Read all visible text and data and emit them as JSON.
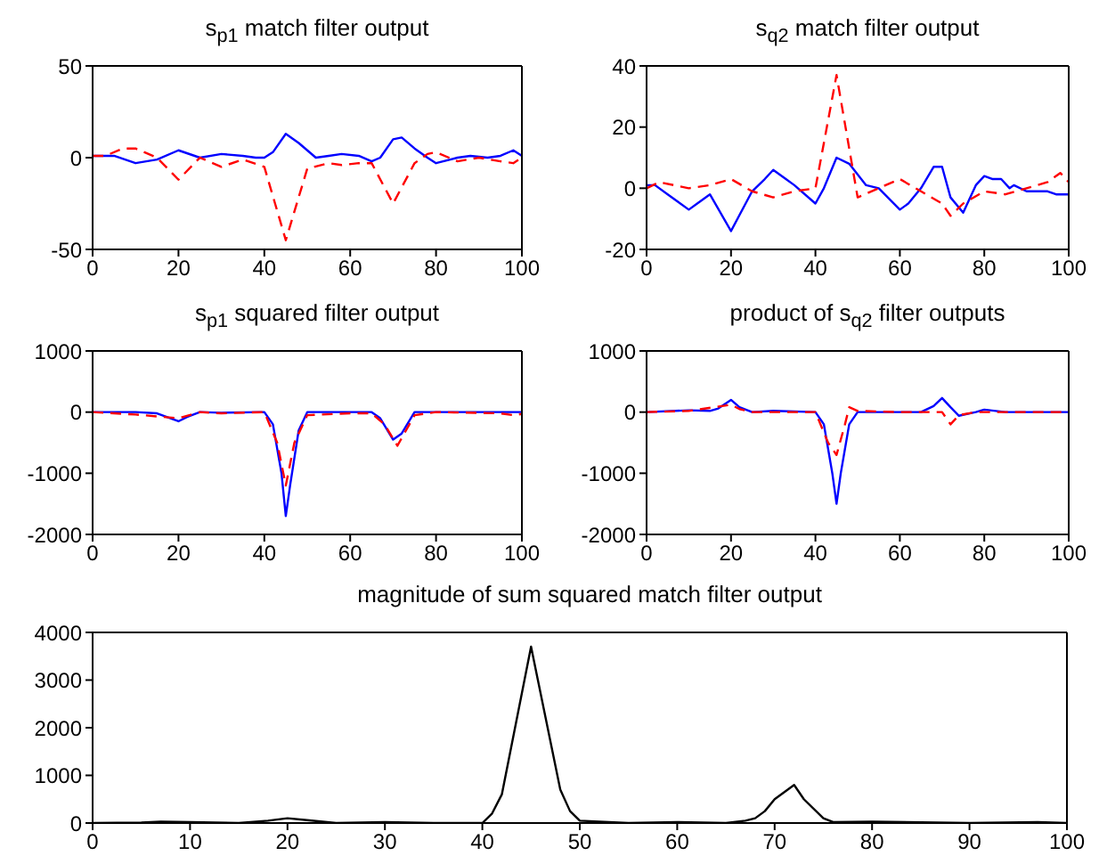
{
  "chart_data": [
    {
      "type": "line",
      "title": "s$_{p1}$ match filter output",
      "xlim": [
        0,
        100
      ],
      "xticks": [
        0,
        20,
        40,
        60,
        80,
        100
      ],
      "ylim": [
        -50,
        50
      ],
      "yticks": [
        -50,
        0,
        50
      ],
      "series": [
        {
          "color": "#0000ff",
          "line_style": "solid",
          "x": [
            0,
            5,
            10,
            15,
            20,
            25,
            30,
            35,
            38,
            40,
            42,
            45,
            48,
            52,
            55,
            58,
            62,
            65,
            67,
            70,
            72,
            75,
            78,
            80,
            85,
            88,
            92,
            95,
            98,
            100
          ],
          "values": [
            1,
            1,
            -3,
            -1,
            4,
            0,
            2,
            1,
            0,
            0,
            3,
            13,
            8,
            0,
            1,
            2,
            1,
            -2,
            0,
            10,
            11,
            5,
            0,
            -3,
            0,
            1,
            0,
            1,
            4,
            1
          ]
        },
        {
          "color": "#ff0000",
          "line_style": "dashed",
          "x": [
            0,
            3,
            7,
            10,
            15,
            20,
            25,
            30,
            35,
            40,
            45,
            50,
            55,
            58,
            62,
            65,
            70,
            75,
            78,
            80,
            85,
            90,
            95,
            98,
            100
          ],
          "values": [
            1,
            1,
            5,
            5,
            0,
            -12,
            0,
            -5,
            -1,
            -5,
            -45,
            -6,
            -3,
            -4,
            -3,
            -3,
            -25,
            -3,
            2,
            3,
            -2,
            0,
            -2,
            -3,
            0
          ]
        }
      ]
    },
    {
      "type": "line",
      "title": "s$_{q2}$ match filter output",
      "xlim": [
        0,
        100
      ],
      "xticks": [
        0,
        20,
        40,
        60,
        80,
        100
      ],
      "ylim": [
        -20,
        40
      ],
      "yticks": [
        -20,
        0,
        20,
        40
      ],
      "series": [
        {
          "color": "#0000ff",
          "line_style": "solid",
          "x": [
            0,
            2,
            5,
            8,
            10,
            12,
            15,
            20,
            25,
            28,
            30,
            33,
            35,
            40,
            42,
            45,
            48,
            52,
            55,
            60,
            62,
            65,
            68,
            70,
            72,
            75,
            78,
            80,
            82,
            84,
            86,
            87,
            90,
            95,
            97,
            100
          ],
          "values": [
            1,
            1,
            -2,
            -5,
            -7,
            -5,
            -2,
            -14,
            -1,
            3,
            6,
            3,
            1,
            -5,
            0,
            10,
            8,
            1,
            0,
            -7,
            -5,
            0,
            7,
            7,
            -3,
            -8,
            1,
            4,
            3,
            3,
            0,
            1,
            -1,
            -1,
            -2,
            -2
          ]
        },
        {
          "color": "#ff0000",
          "line_style": "dashed",
          "x": [
            0,
            3,
            10,
            15,
            20,
            25,
            30,
            35,
            40,
            45,
            50,
            55,
            60,
            65,
            70,
            72,
            75,
            80,
            85,
            90,
            95,
            98,
            100
          ],
          "values": [
            0,
            2,
            0,
            1,
            3,
            -1,
            -3,
            -1,
            0,
            37,
            -3,
            0,
            3,
            -1,
            -5,
            -9,
            -5,
            -1,
            -2,
            0,
            2,
            5,
            2
          ]
        }
      ]
    },
    {
      "type": "line",
      "title": "s$_{p1}$ squared filter output",
      "xlim": [
        0,
        100
      ],
      "xticks": [
        0,
        20,
        40,
        60,
        80,
        100
      ],
      "ylim": [
        -2000,
        1000
      ],
      "yticks": [
        -2000,
        -1000,
        0,
        1000
      ],
      "series": [
        {
          "color": "#0000ff",
          "line_style": "solid",
          "x": [
            0,
            10,
            15,
            20,
            22,
            25,
            30,
            40,
            42,
            44,
            45,
            46,
            48,
            50,
            60,
            65,
            67,
            70,
            72,
            75,
            100
          ],
          "values": [
            0,
            0,
            -20,
            -150,
            -80,
            0,
            -10,
            0,
            -200,
            -1000,
            -1700,
            -1200,
            -300,
            0,
            0,
            0,
            -100,
            -450,
            -350,
            0,
            0
          ]
        },
        {
          "color": "#ff0000",
          "line_style": "dashed",
          "x": [
            0,
            10,
            20,
            25,
            30,
            40,
            43,
            45,
            47,
            50,
            60,
            65,
            68,
            71,
            73,
            75,
            80,
            95,
            98,
            100
          ],
          "values": [
            0,
            -40,
            -100,
            0,
            -20,
            0,
            -500,
            -1200,
            -500,
            -50,
            -20,
            -20,
            -200,
            -550,
            -300,
            -50,
            0,
            -20,
            -50,
            -30
          ]
        }
      ]
    },
    {
      "type": "line",
      "title": "product of s$_{q2}$ filter outputs",
      "xlim": [
        0,
        100
      ],
      "xticks": [
        0,
        20,
        40,
        60,
        80,
        100
      ],
      "ylim": [
        -2000,
        1000
      ],
      "yticks": [
        -2000,
        -1000,
        0,
        1000
      ],
      "series": [
        {
          "color": "#0000ff",
          "line_style": "solid",
          "x": [
            0,
            10,
            15,
            17,
            20,
            22,
            25,
            30,
            40,
            42,
            44,
            45,
            46,
            48,
            50,
            65,
            68,
            70,
            72,
            74,
            78,
            80,
            85,
            100
          ],
          "values": [
            0,
            30,
            20,
            60,
            200,
            80,
            0,
            20,
            0,
            -200,
            -1000,
            -1500,
            -1000,
            -200,
            0,
            0,
            100,
            230,
            80,
            -60,
            0,
            40,
            0,
            0
          ]
        },
        {
          "color": "#ff0000",
          "line_style": "dashed",
          "x": [
            0,
            10,
            20,
            22,
            25,
            40,
            43,
            45,
            47,
            48,
            50,
            60,
            70,
            72,
            74,
            78,
            100
          ],
          "values": [
            0,
            20,
            120,
            50,
            0,
            0,
            -500,
            -700,
            -200,
            80,
            20,
            0,
            0,
            -200,
            -50,
            0,
            0
          ]
        }
      ]
    },
    {
      "type": "line",
      "title": "magnitude of sum squared match filter output",
      "xlim": [
        0,
        100
      ],
      "xticks": [
        0,
        10,
        20,
        30,
        40,
        50,
        60,
        70,
        80,
        90,
        100
      ],
      "ylim": [
        0,
        4000
      ],
      "yticks": [
        0,
        1000,
        2000,
        3000,
        4000
      ],
      "series": [
        {
          "color": "#000000",
          "line_style": "solid",
          "x": [
            0,
            5,
            7,
            10,
            15,
            18,
            20,
            22,
            25,
            30,
            35,
            40,
            41,
            42,
            45,
            48,
            49,
            50,
            55,
            60,
            65,
            67,
            68,
            69,
            70,
            72,
            73,
            75,
            76,
            80,
            90,
            97,
            100
          ],
          "values": [
            0,
            10,
            30,
            20,
            0,
            50,
            100,
            60,
            0,
            20,
            0,
            0,
            200,
            600,
            3700,
            700,
            250,
            50,
            0,
            20,
            0,
            50,
            100,
            250,
            500,
            800,
            500,
            100,
            20,
            30,
            0,
            20,
            0
          ]
        }
      ]
    }
  ]
}
